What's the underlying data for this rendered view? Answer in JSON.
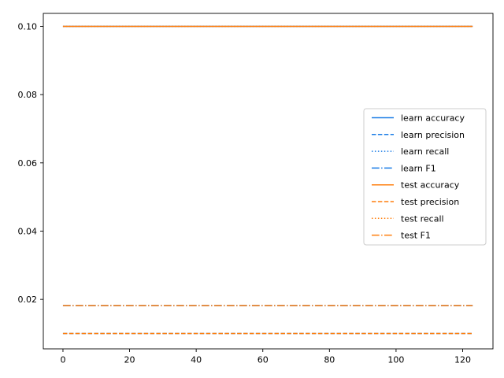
{
  "figure": {
    "background": "#ffffff"
  },
  "colors": {
    "learn_series": "#1a7ce6",
    "test_series": "#ff7f0e",
    "axis": "#000000",
    "legend_border": "#cccccc",
    "legend_background": "#ffffff"
  },
  "chart_data": {
    "type": "line",
    "title": "",
    "xlabel": "",
    "ylabel": "",
    "xlim": [
      -5.9,
      129.1
    ],
    "ylim": [
      0.0055,
      0.1038
    ],
    "xticks": [
      0,
      20,
      40,
      60,
      80,
      100,
      120
    ],
    "xtick_labels": [
      "0",
      "20",
      "40",
      "60",
      "80",
      "100",
      "120"
    ],
    "yticks": [
      0.02,
      0.04,
      0.06,
      0.08,
      0.1
    ],
    "ytick_labels": [
      "0.02",
      "0.04",
      "0.06",
      "0.08",
      "0.10"
    ],
    "grid": false,
    "x_span": [
      0,
      123
    ],
    "legend_position": "center right",
    "series": [
      {
        "name": "learn accuracy",
        "color": "#1a7ce6",
        "linestyle": "solid",
        "value": 0.1
      },
      {
        "name": "learn precision",
        "color": "#1a7ce6",
        "linestyle": "dashed",
        "value": 0.01
      },
      {
        "name": "learn recall",
        "color": "#1a7ce6",
        "linestyle": "dotted",
        "value": 0.1
      },
      {
        "name": "learn F1",
        "color": "#1a7ce6",
        "linestyle": "dashdot",
        "value": 0.0182
      },
      {
        "name": "test accuracy",
        "color": "#ff7f0e",
        "linestyle": "solid",
        "value": 0.1
      },
      {
        "name": "test precision",
        "color": "#ff7f0e",
        "linestyle": "dashed",
        "value": 0.01
      },
      {
        "name": "test recall",
        "color": "#ff7f0e",
        "linestyle": "dotted",
        "value": 0.1
      },
      {
        "name": "test F1",
        "color": "#ff7f0e",
        "linestyle": "dashdot",
        "value": 0.0182
      }
    ]
  }
}
